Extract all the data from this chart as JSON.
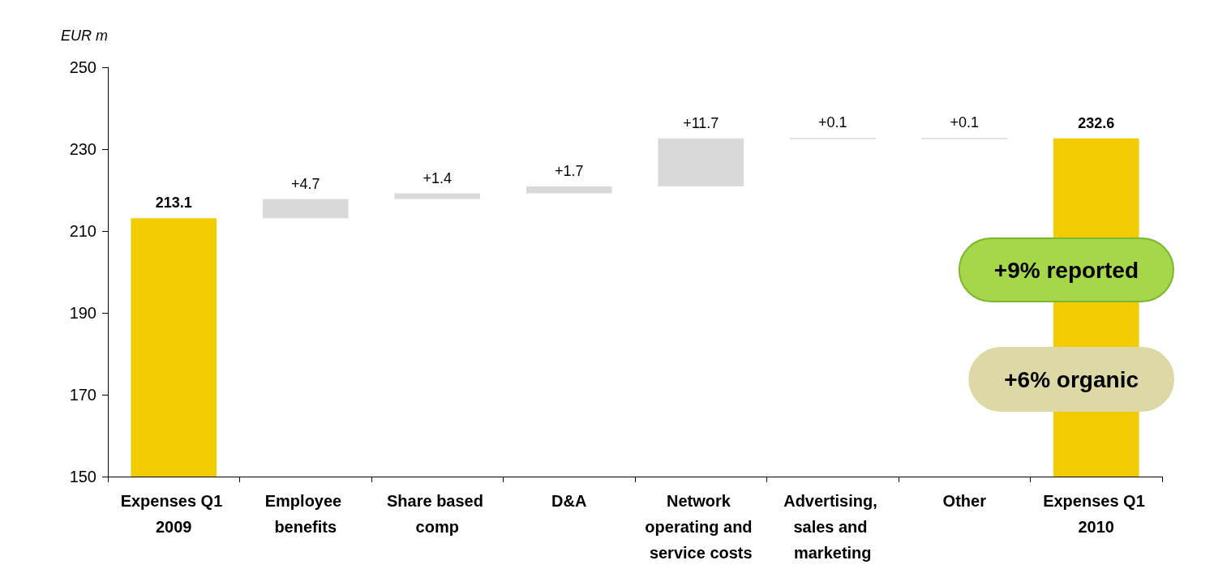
{
  "chart_data": {
    "type": "bar",
    "ylabel": "EUR m",
    "categories": [
      "Expenses Q1 2009",
      "Employee benefits",
      "Share based comp",
      "D&A",
      "Network operating and service costs",
      "Advertising, sales and marketing",
      "Other",
      "Expenses Q1 2010"
    ],
    "values": [
      213.1,
      4.7,
      1.4,
      1.7,
      11.7,
      0.1,
      0.1,
      232.6
    ],
    "base": [
      null,
      213.1,
      217.8,
      219.2,
      220.9,
      232.6,
      232.6,
      null
    ],
    "colors": [
      "#f2cc00",
      "#d9d9d9",
      "#d9d9d9",
      "#d9d9d9",
      "#d9d9d9",
      "#d9d9d9",
      "#d9d9d9",
      "#f2cc00"
    ],
    "value_labels": [
      "213.1",
      "+4.7",
      "+1.4",
      "+1.7",
      "+11.7",
      "+0.1",
      "+0.1",
      "232.6"
    ],
    "ylim": [
      150,
      250
    ],
    "yticks": [
      150,
      170,
      190,
      210,
      230,
      250
    ],
    "grid": false,
    "annotations": [
      "+9% reported",
      "+6% organic"
    ]
  }
}
